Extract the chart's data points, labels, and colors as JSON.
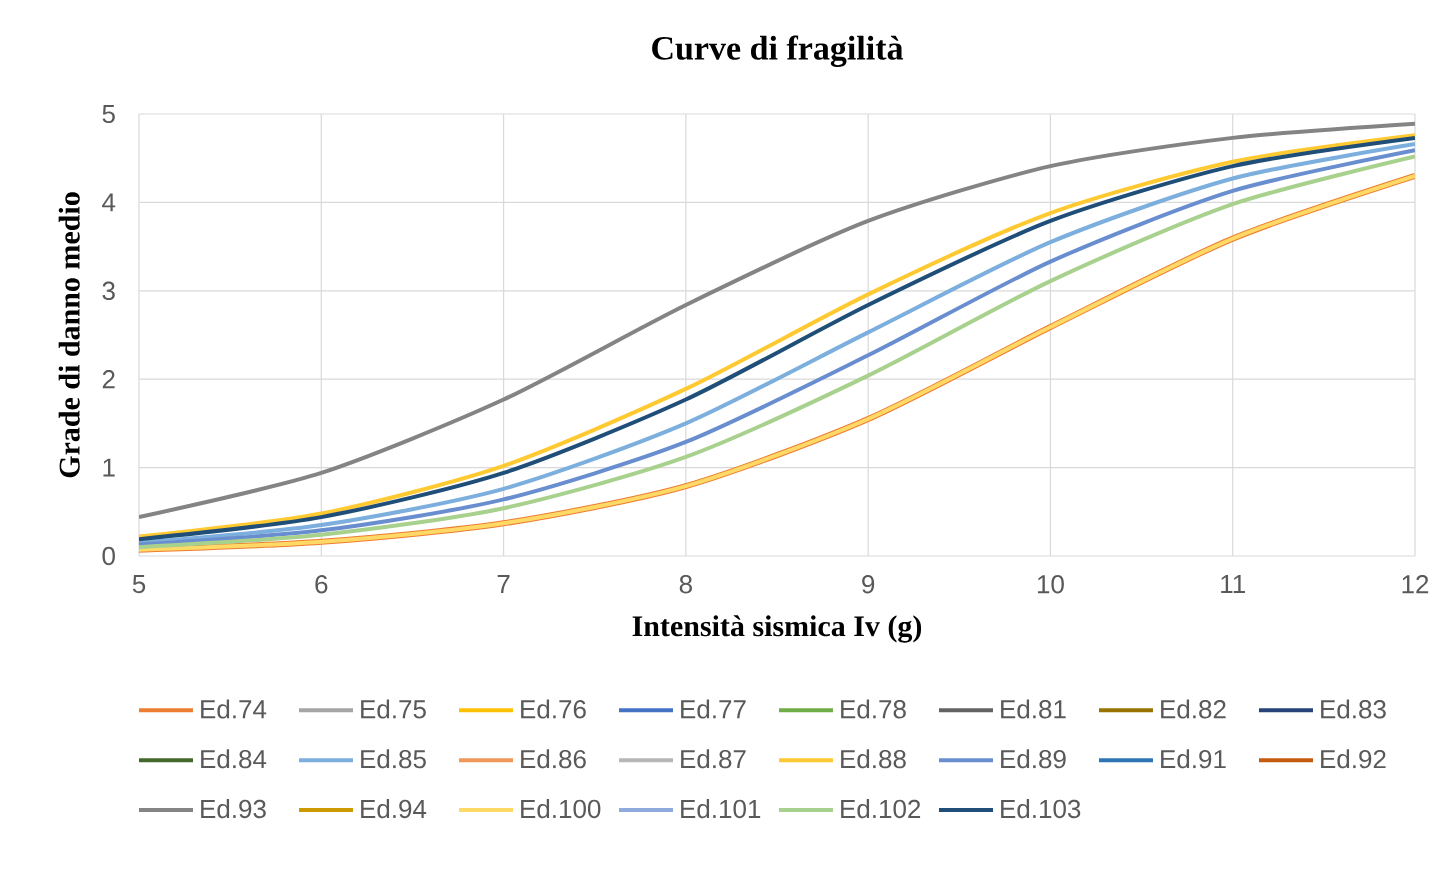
{
  "chart_data": {
    "type": "line",
    "title": "Curve di fragilità",
    "xlabel": "Intensità sismica Iv (g)",
    "ylabel": "Grade di danno medio",
    "x": [
      5,
      6,
      7,
      8,
      9,
      10,
      11,
      12
    ],
    "series": [
      {
        "name": "Ed.74",
        "color": "#ed7d31",
        "values": [
          0.07,
          0.16,
          0.37,
          0.79,
          1.55,
          2.59,
          3.59,
          4.3
        ]
      },
      {
        "name": "Ed.75",
        "color": "#a5a5a5",
        "values": [
          null,
          null,
          null,
          null,
          null,
          null,
          null,
          null
        ]
      },
      {
        "name": "Ed.76",
        "color": "#ffc000",
        "values": [
          null,
          null,
          null,
          null,
          null,
          null,
          null,
          null
        ]
      },
      {
        "name": "Ed.77",
        "color": "#4472c4",
        "values": [
          null,
          null,
          null,
          null,
          null,
          null,
          null,
          null
        ]
      },
      {
        "name": "Ed.78",
        "color": "#70ad47",
        "values": [
          null,
          null,
          null,
          null,
          null,
          null,
          null,
          null
        ]
      },
      {
        "name": "Ed.81",
        "color": "#636363",
        "values": [
          null,
          null,
          null,
          null,
          null,
          null,
          null,
          null
        ]
      },
      {
        "name": "Ed.82",
        "color": "#997300",
        "values": [
          null,
          null,
          null,
          null,
          null,
          null,
          null,
          null
        ]
      },
      {
        "name": "Ed.83",
        "color": "#264478",
        "values": [
          null,
          null,
          null,
          null,
          null,
          null,
          null,
          null
        ]
      },
      {
        "name": "Ed.84",
        "color": "#43682b",
        "values": [
          null,
          null,
          null,
          null,
          null,
          null,
          null,
          null
        ]
      },
      {
        "name": "Ed.85",
        "color": "#7cafdd",
        "values": [
          0.15,
          0.35,
          0.76,
          1.5,
          2.53,
          3.55,
          4.27,
          4.66
        ]
      },
      {
        "name": "Ed.86",
        "color": "#f1975a",
        "values": [
          null,
          null,
          null,
          null,
          null,
          null,
          null,
          null
        ]
      },
      {
        "name": "Ed.87",
        "color": "#b7b7b7",
        "values": [
          null,
          null,
          null,
          null,
          null,
          null,
          null,
          null
        ]
      },
      {
        "name": "Ed.88",
        "color": "#ffc931",
        "values": [
          0.22,
          0.48,
          1.02,
          1.89,
          2.96,
          3.88,
          4.46,
          4.76
        ]
      },
      {
        "name": "Ed.89",
        "color": "#698ed0",
        "values": [
          0.13,
          0.29,
          0.64,
          1.29,
          2.27,
          3.33,
          4.13,
          4.59
        ]
      },
      {
        "name": "Ed.91",
        "color": "#2e75b6",
        "values": [
          null,
          null,
          null,
          null,
          null,
          null,
          null,
          null
        ]
      },
      {
        "name": "Ed.92",
        "color": "#c55a11",
        "values": [
          null,
          null,
          null,
          null,
          null,
          null,
          null,
          null
        ]
      },
      {
        "name": "Ed.93",
        "color": "#848484",
        "values": [
          0.44,
          0.94,
          1.77,
          2.84,
          3.79,
          4.41,
          4.73,
          4.89
        ]
      },
      {
        "name": "Ed.94",
        "color": "#cc9a00",
        "values": [
          null,
          null,
          null,
          null,
          null,
          null,
          null,
          null
        ]
      },
      {
        "name": "Ed.100",
        "color": "#ffd966",
        "values": [
          0.07,
          0.16,
          0.37,
          0.79,
          1.55,
          2.59,
          3.59,
          4.3
        ]
      },
      {
        "name": "Ed.101",
        "color": "#8faadc",
        "values": [
          null,
          null,
          null,
          null,
          null,
          null,
          null,
          null
        ]
      },
      {
        "name": "Ed.102",
        "color": "#a9d18e",
        "values": [
          0.1,
          0.24,
          0.54,
          1.12,
          2.04,
          3.11,
          3.98,
          4.52
        ]
      },
      {
        "name": "Ed.103",
        "color": "#1f4e79",
        "values": [
          0.19,
          0.44,
          0.94,
          1.77,
          2.84,
          3.79,
          4.41,
          4.73
        ]
      }
    ],
    "xlim": [
      5,
      12
    ],
    "ylim": [
      0,
      5
    ],
    "xticks": [
      5,
      6,
      7,
      8,
      9,
      10,
      11,
      12
    ],
    "yticks": [
      0,
      1,
      2,
      3,
      4,
      5
    ],
    "grid": true,
    "legend": "bottom"
  }
}
